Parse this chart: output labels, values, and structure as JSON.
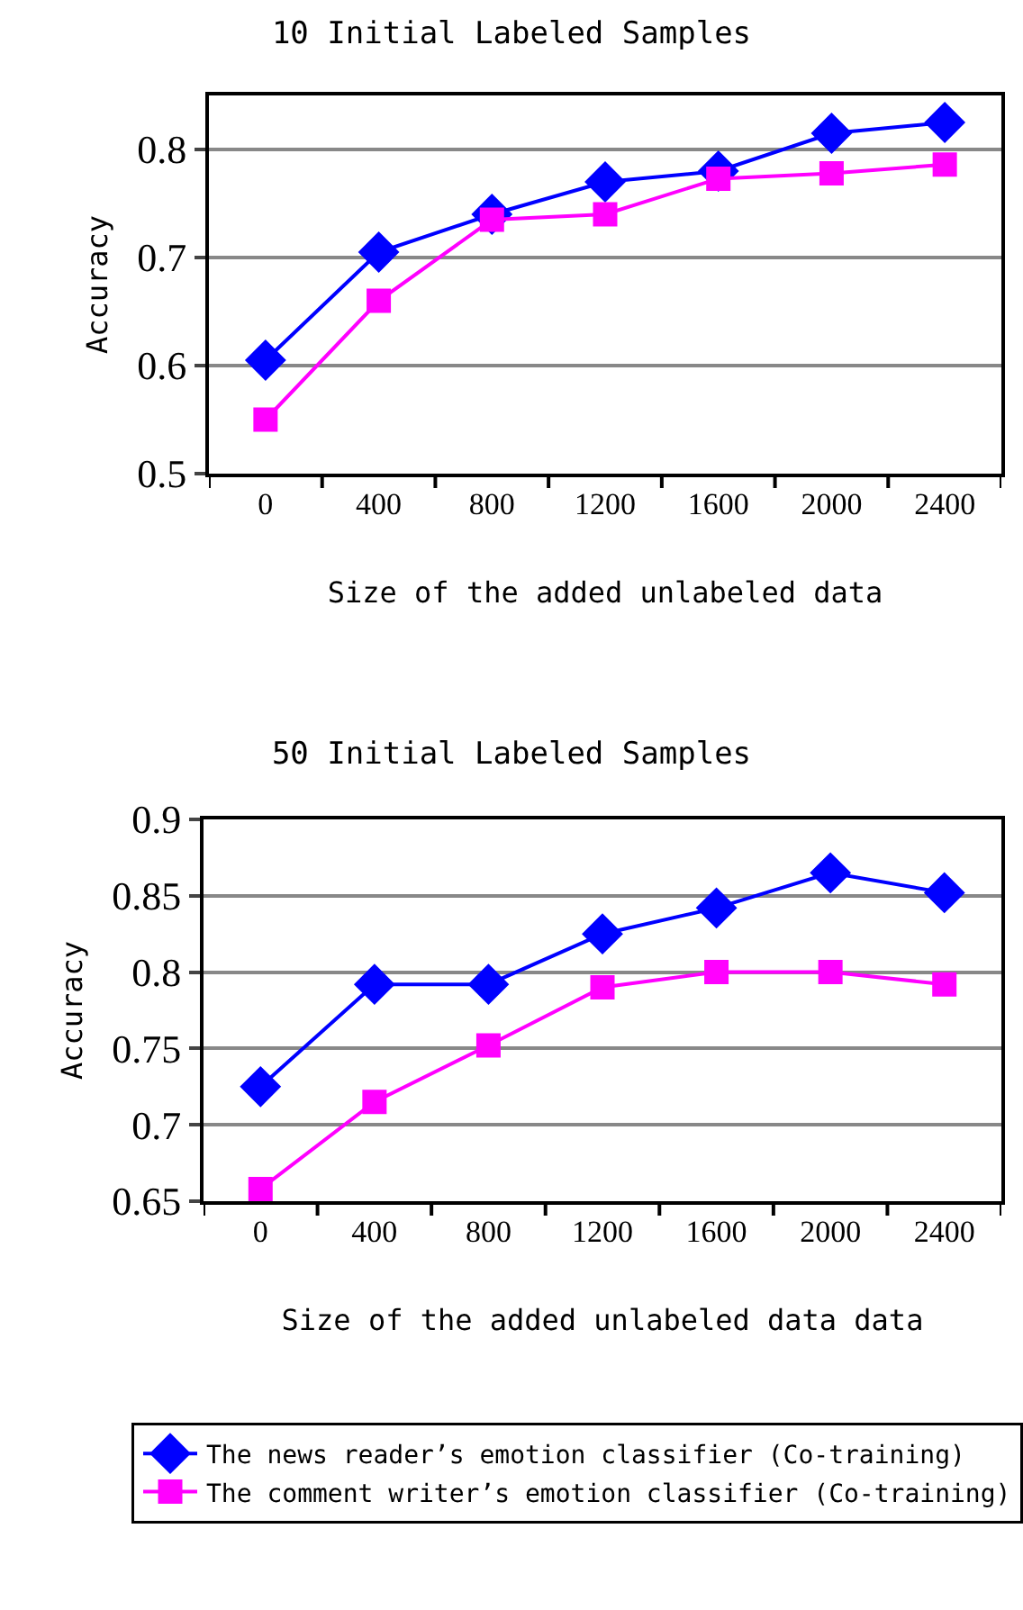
{
  "chart_data": [
    {
      "type": "line",
      "title": "10 Initial Labeled Samples",
      "xlabel": "Size of the added unlabeled data",
      "ylabel": "Accuracy",
      "categories": [
        "0",
        "400",
        "800",
        "1200",
        "1600",
        "2000",
        "2400"
      ],
      "series": [
        {
          "color": "#0000ff",
          "marker": "diamond",
          "values": [
            0.605,
            0.705,
            0.74,
            0.77,
            0.78,
            0.815,
            0.825
          ]
        },
        {
          "color": "#ff00ff",
          "marker": "square",
          "values": [
            0.55,
            0.66,
            0.735,
            0.74,
            0.773,
            0.778,
            0.786
          ]
        }
      ],
      "ylim": [
        0.5,
        0.85
      ],
      "yticks": [
        0.5,
        0.6,
        0.7,
        0.8
      ],
      "grid": "y",
      "legend": false,
      "line_style": "solid"
    },
    {
      "type": "line",
      "title": "50 Initial Labeled Samples",
      "xlabel": "Size of the added unlabeled data data",
      "ylabel": "Accuracy",
      "categories": [
        "0",
        "400",
        "800",
        "1200",
        "1600",
        "2000",
        "2400"
      ],
      "series": [
        {
          "name": "The news reader’s emotion classifier (Co-training)",
          "color": "#0000ff",
          "marker": "diamond",
          "values": [
            0.725,
            0.792,
            0.792,
            0.825,
            0.842,
            0.865,
            0.852
          ]
        },
        {
          "name": "The comment writer’s emotion classifier (Co-training)",
          "color": "#ff00ff",
          "marker": "square",
          "values": [
            0.658,
            0.715,
            0.752,
            0.79,
            0.8,
            0.8,
            0.792
          ]
        }
      ],
      "ylim": [
        0.65,
        0.9
      ],
      "yticks": [
        0.65,
        0.7,
        0.75,
        0.8,
        0.85,
        0.9
      ],
      "grid": "y",
      "legend": "bottom",
      "line_style": "solid"
    }
  ]
}
